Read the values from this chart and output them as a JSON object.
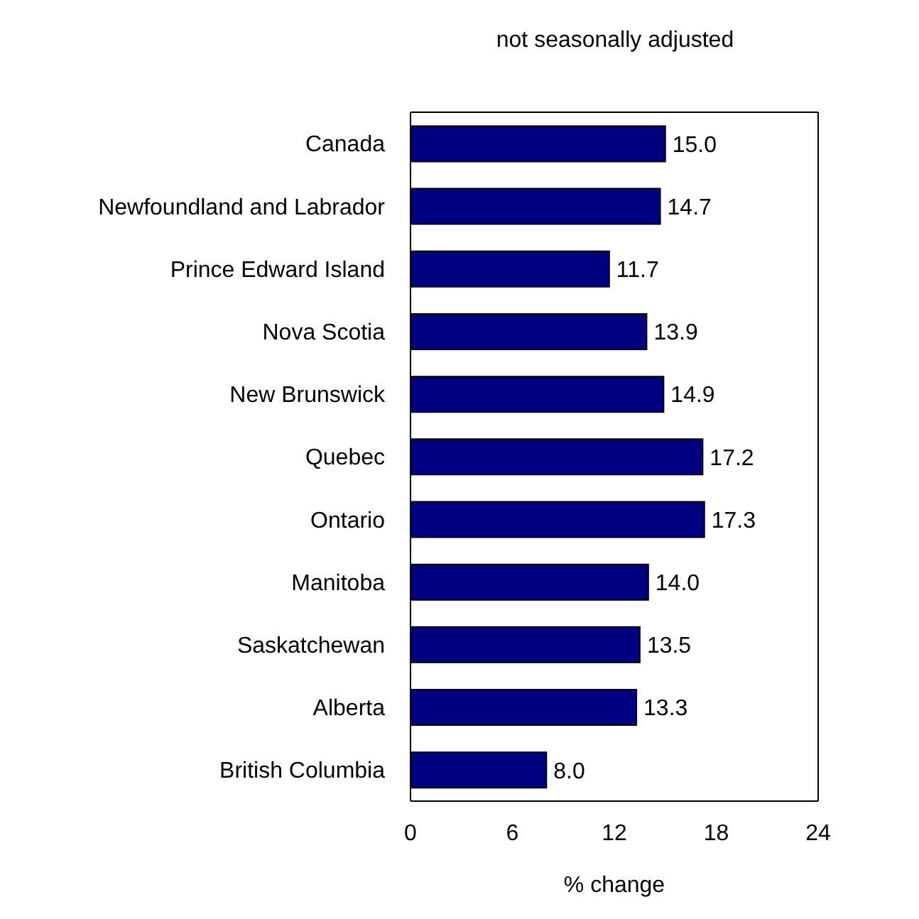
{
  "chart_data": {
    "type": "bar",
    "orientation": "horizontal",
    "subtitle": "not seasonally adjusted",
    "xlabel": "% change",
    "categories": [
      "Canada",
      "Newfoundland and Labrador",
      "Prince Edward Island",
      "Nova Scotia",
      "New Brunswick",
      "Quebec",
      "Ontario",
      "Manitoba",
      "Saskatchewan",
      "Alberta",
      "British Columbia"
    ],
    "values": [
      15.0,
      14.7,
      11.7,
      13.9,
      14.9,
      17.2,
      17.3,
      14.0,
      13.5,
      13.3,
      8.0
    ],
    "value_labels": [
      "15.0",
      "14.7",
      "11.7",
      "13.9",
      "14.9",
      "17.2",
      "17.3",
      "14.0",
      "13.5",
      "13.3",
      "8.0"
    ],
    "color": "#000080",
    "xlim": [
      0,
      24
    ],
    "xticks": [
      0,
      6,
      12,
      18,
      24
    ]
  }
}
